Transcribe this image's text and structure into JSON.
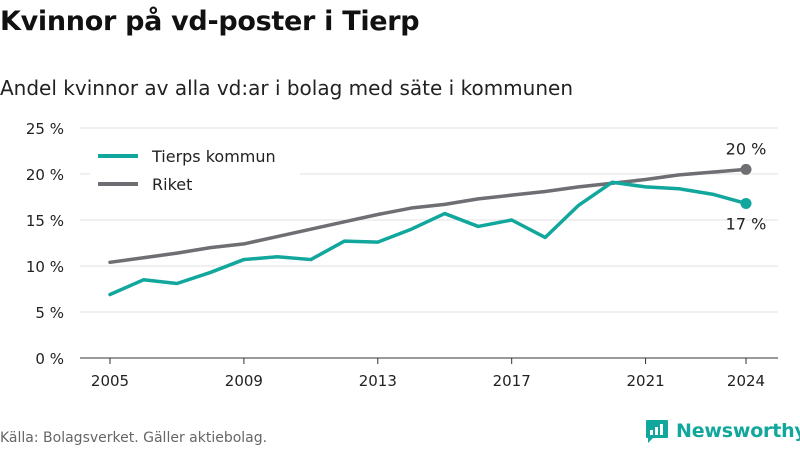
{
  "header": {
    "title": "Kvinnor på vd-poster i Tierp",
    "subtitle": "Andel kvinnor av alla vd:ar i bolag med säte i kommunen"
  },
  "footer": {
    "source": "Källa: Bolagsverket. Gäller aktiebolag.",
    "brand": "Newsworthy"
  },
  "colors": {
    "tierp": "#12a79d",
    "riket": "#6e6e73",
    "grid": "#e2e2e2",
    "axis": "#333333",
    "text": "#222222"
  },
  "chart_data": {
    "type": "line",
    "title": "Kvinnor på vd-poster i Tierp",
    "subtitle": "Andel kvinnor av alla vd:ar i bolag med säte i kommunen",
    "xlabel": "",
    "ylabel": "",
    "x": [
      2005,
      2006,
      2007,
      2008,
      2009,
      2010,
      2011,
      2012,
      2013,
      2014,
      2015,
      2016,
      2017,
      2018,
      2019,
      2020,
      2021,
      2022,
      2023,
      2024
    ],
    "xlim": [
      2005,
      2024
    ],
    "xticks": [
      2005,
      2009,
      2013,
      2017,
      2021,
      2024
    ],
    "ylim": [
      0,
      25
    ],
    "yticks": [
      0,
      5,
      10,
      15,
      20,
      25
    ],
    "ytick_labels": [
      "0 %",
      "5 %",
      "10 %",
      "15 %",
      "20 %",
      "25 %"
    ],
    "grid": true,
    "legend_position": "top-left",
    "series": [
      {
        "name": "Tierps kommun",
        "color": "#12a79d",
        "values": [
          6.9,
          8.5,
          8.1,
          9.3,
          10.7,
          11.0,
          10.7,
          12.7,
          12.6,
          14.0,
          15.7,
          14.3,
          15.0,
          13.1,
          16.6,
          19.1,
          18.6,
          18.4,
          17.8,
          16.8
        ],
        "end_label": "17 %",
        "end_label_position": "below"
      },
      {
        "name": "Riket",
        "color": "#6e6e73",
        "values": [
          10.4,
          10.9,
          11.4,
          12.0,
          12.4,
          13.2,
          14.0,
          14.8,
          15.6,
          16.3,
          16.7,
          17.3,
          17.7,
          18.1,
          18.6,
          19.0,
          19.4,
          19.9,
          20.2,
          20.5
        ],
        "end_label": "20 %",
        "end_label_position": "above"
      }
    ]
  }
}
